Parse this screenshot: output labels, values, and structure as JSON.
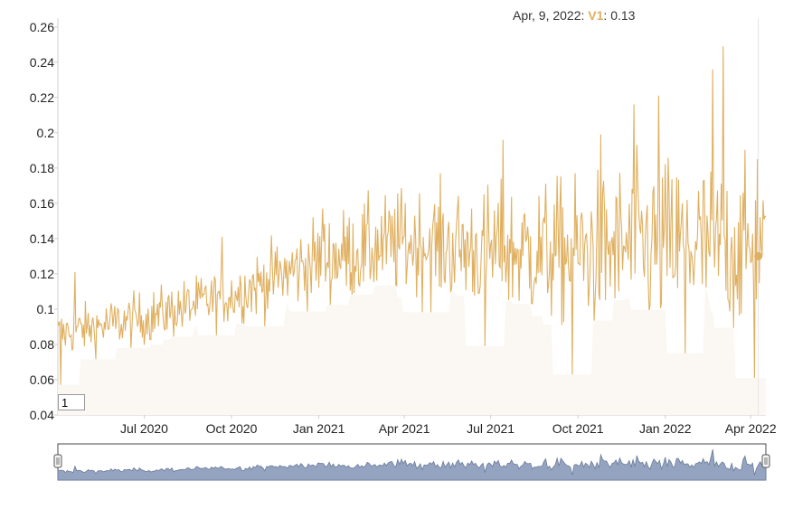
{
  "legend": {
    "date": "Apr, 9, 2022:",
    "series_name": "V1",
    "value": "0.13"
  },
  "roll_period": "1",
  "colors": {
    "series": "#e0b060",
    "fill": "#fbf8f3",
    "range_fill": "#94a3c0",
    "range_line": "#6a7c99"
  },
  "chart_data": {
    "type": "line",
    "series": [
      {
        "name": "V1"
      }
    ],
    "x_start": "2020-04-01",
    "x_end": "2022-04-17",
    "xlim": [
      "2020-04-01",
      "2022-04-17"
    ],
    "ylim": [
      0.04,
      0.265
    ],
    "yticks": [
      "0.04",
      "0.06",
      "0.08",
      "0.1",
      "0.12",
      "0.14",
      "0.16",
      "0.18",
      "0.2",
      "0.22",
      "0.24",
      "0.26"
    ],
    "xticks": [
      {
        "label": "Jul 2020",
        "date": "2020-07-01"
      },
      {
        "label": "Oct 2020",
        "date": "2020-10-01"
      },
      {
        "label": "Jan 2021",
        "date": "2021-01-01"
      },
      {
        "label": "Apr 2021",
        "date": "2021-04-01"
      },
      {
        "label": "Jul 2021",
        "date": "2021-07-01"
      },
      {
        "label": "Oct 2021",
        "date": "2021-10-01"
      },
      {
        "label": "Jan 2022",
        "date": "2022-01-01"
      },
      {
        "label": "Apr 2022",
        "date": "2022-04-01"
      }
    ],
    "trend": [
      {
        "date": "2020-04-01",
        "value": 0.086
      },
      {
        "date": "2020-07-01",
        "value": 0.095
      },
      {
        "date": "2020-10-01",
        "value": 0.108
      },
      {
        "date": "2021-01-01",
        "value": 0.128
      },
      {
        "date": "2021-04-01",
        "value": 0.138
      },
      {
        "date": "2021-07-01",
        "value": 0.133
      },
      {
        "date": "2021-10-01",
        "value": 0.132
      },
      {
        "date": "2022-01-01",
        "value": 0.137
      },
      {
        "date": "2022-04-17",
        "value": 0.133
      }
    ],
    "spread": [
      {
        "date": "2020-04-01",
        "value": 0.012
      },
      {
        "date": "2020-10-01",
        "value": 0.015
      },
      {
        "date": "2021-01-01",
        "value": 0.022
      },
      {
        "date": "2021-07-01",
        "value": 0.032
      },
      {
        "date": "2021-10-01",
        "value": 0.038
      },
      {
        "date": "2022-01-01",
        "value": 0.045
      },
      {
        "date": "2022-04-17",
        "value": 0.04
      }
    ],
    "notable_points": [
      {
        "date": "2020-04-04",
        "value": 0.057
      },
      {
        "date": "2020-04-19",
        "value": 0.121
      },
      {
        "date": "2020-09-21",
        "value": 0.141
      },
      {
        "date": "2021-01-05",
        "value": 0.157
      },
      {
        "date": "2021-06-25",
        "value": 0.079
      },
      {
        "date": "2021-07-14",
        "value": 0.196
      },
      {
        "date": "2021-09-25",
        "value": 0.063
      },
      {
        "date": "2021-10-25",
        "value": 0.199
      },
      {
        "date": "2021-11-29",
        "value": 0.216
      },
      {
        "date": "2021-12-25",
        "value": 0.221
      },
      {
        "date": "2022-01-22",
        "value": 0.075
      },
      {
        "date": "2022-02-20",
        "value": 0.236
      },
      {
        "date": "2022-03-03",
        "value": 0.249
      },
      {
        "date": "2022-04-05",
        "value": 0.061
      },
      {
        "date": "2022-04-08",
        "value": 0.185
      },
      {
        "date": "2022-04-09",
        "value": 0.13
      }
    ],
    "highlight": {
      "date": "2022-04-09",
      "value": 0.13
    },
    "grid": false,
    "legend_position": "top-right"
  }
}
